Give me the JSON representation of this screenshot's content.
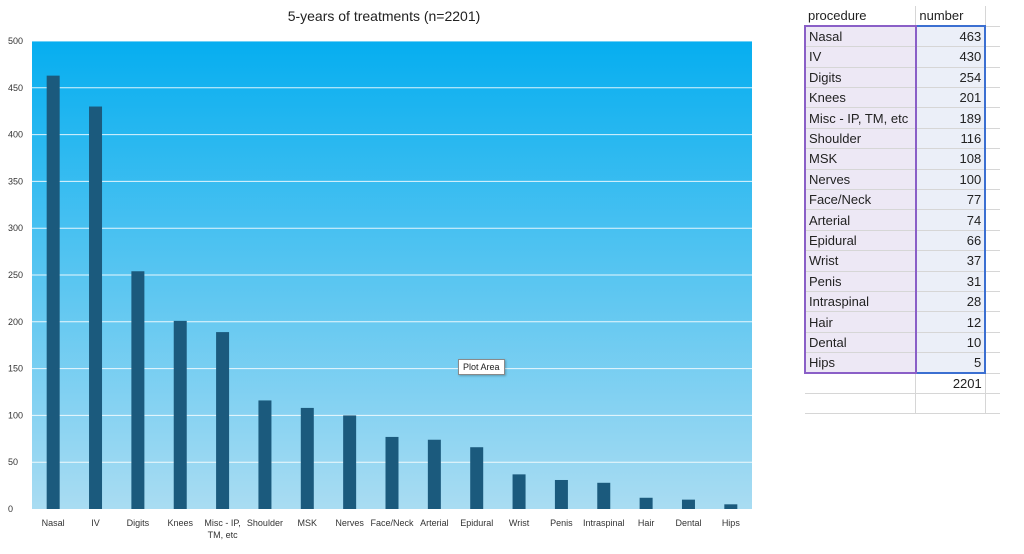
{
  "chart_data": {
    "type": "bar",
    "title": "5-years of treatments (n=2201)",
    "categories": [
      "Nasal",
      "IV",
      "Digits",
      "Knees",
      "Misc - IP, TM, etc",
      "Shoulder",
      "MSK",
      "Nerves",
      "Face/Neck",
      "Arterial",
      "Epidural",
      "Wrist",
      "Penis",
      "Intraspinal",
      "Hair",
      "Dental",
      "Hips"
    ],
    "values": [
      463,
      430,
      254,
      201,
      189,
      116,
      108,
      100,
      77,
      74,
      66,
      37,
      31,
      28,
      12,
      10,
      5
    ],
    "ylim": [
      0,
      500
    ],
    "yticks": [
      "0",
      "50",
      "100",
      "150",
      "200",
      "250",
      "300",
      "350",
      "400",
      "450",
      "500"
    ],
    "grid": true,
    "colors": {
      "bar": "#1b5a7d",
      "bg_top": "#06aef0",
      "bg_bottom": "#a9dcf2"
    },
    "tooltip": "Plot Area"
  },
  "sheet": {
    "headers": [
      "procedure",
      "number"
    ],
    "rows": [
      {
        "name": "Nasal",
        "value": "463"
      },
      {
        "name": "IV",
        "value": "430"
      },
      {
        "name": "Digits",
        "value": "254"
      },
      {
        "name": "Knees",
        "value": "201"
      },
      {
        "name": "Misc - IP, TM, etc",
        "value": "189"
      },
      {
        "name": "Shoulder",
        "value": "116"
      },
      {
        "name": "MSK",
        "value": "108"
      },
      {
        "name": "Nerves",
        "value": "100"
      },
      {
        "name": "Face/Neck",
        "value": "77"
      },
      {
        "name": "Arterial",
        "value": "74"
      },
      {
        "name": "Epidural",
        "value": "66"
      },
      {
        "name": "Wrist",
        "value": "37"
      },
      {
        "name": "Penis",
        "value": "31"
      },
      {
        "name": "Intraspinal",
        "value": "28"
      },
      {
        "name": "Hair",
        "value": "12"
      },
      {
        "name": "Dental",
        "value": "10"
      },
      {
        "name": "Hips",
        "value": "5"
      }
    ],
    "total": "2201"
  }
}
